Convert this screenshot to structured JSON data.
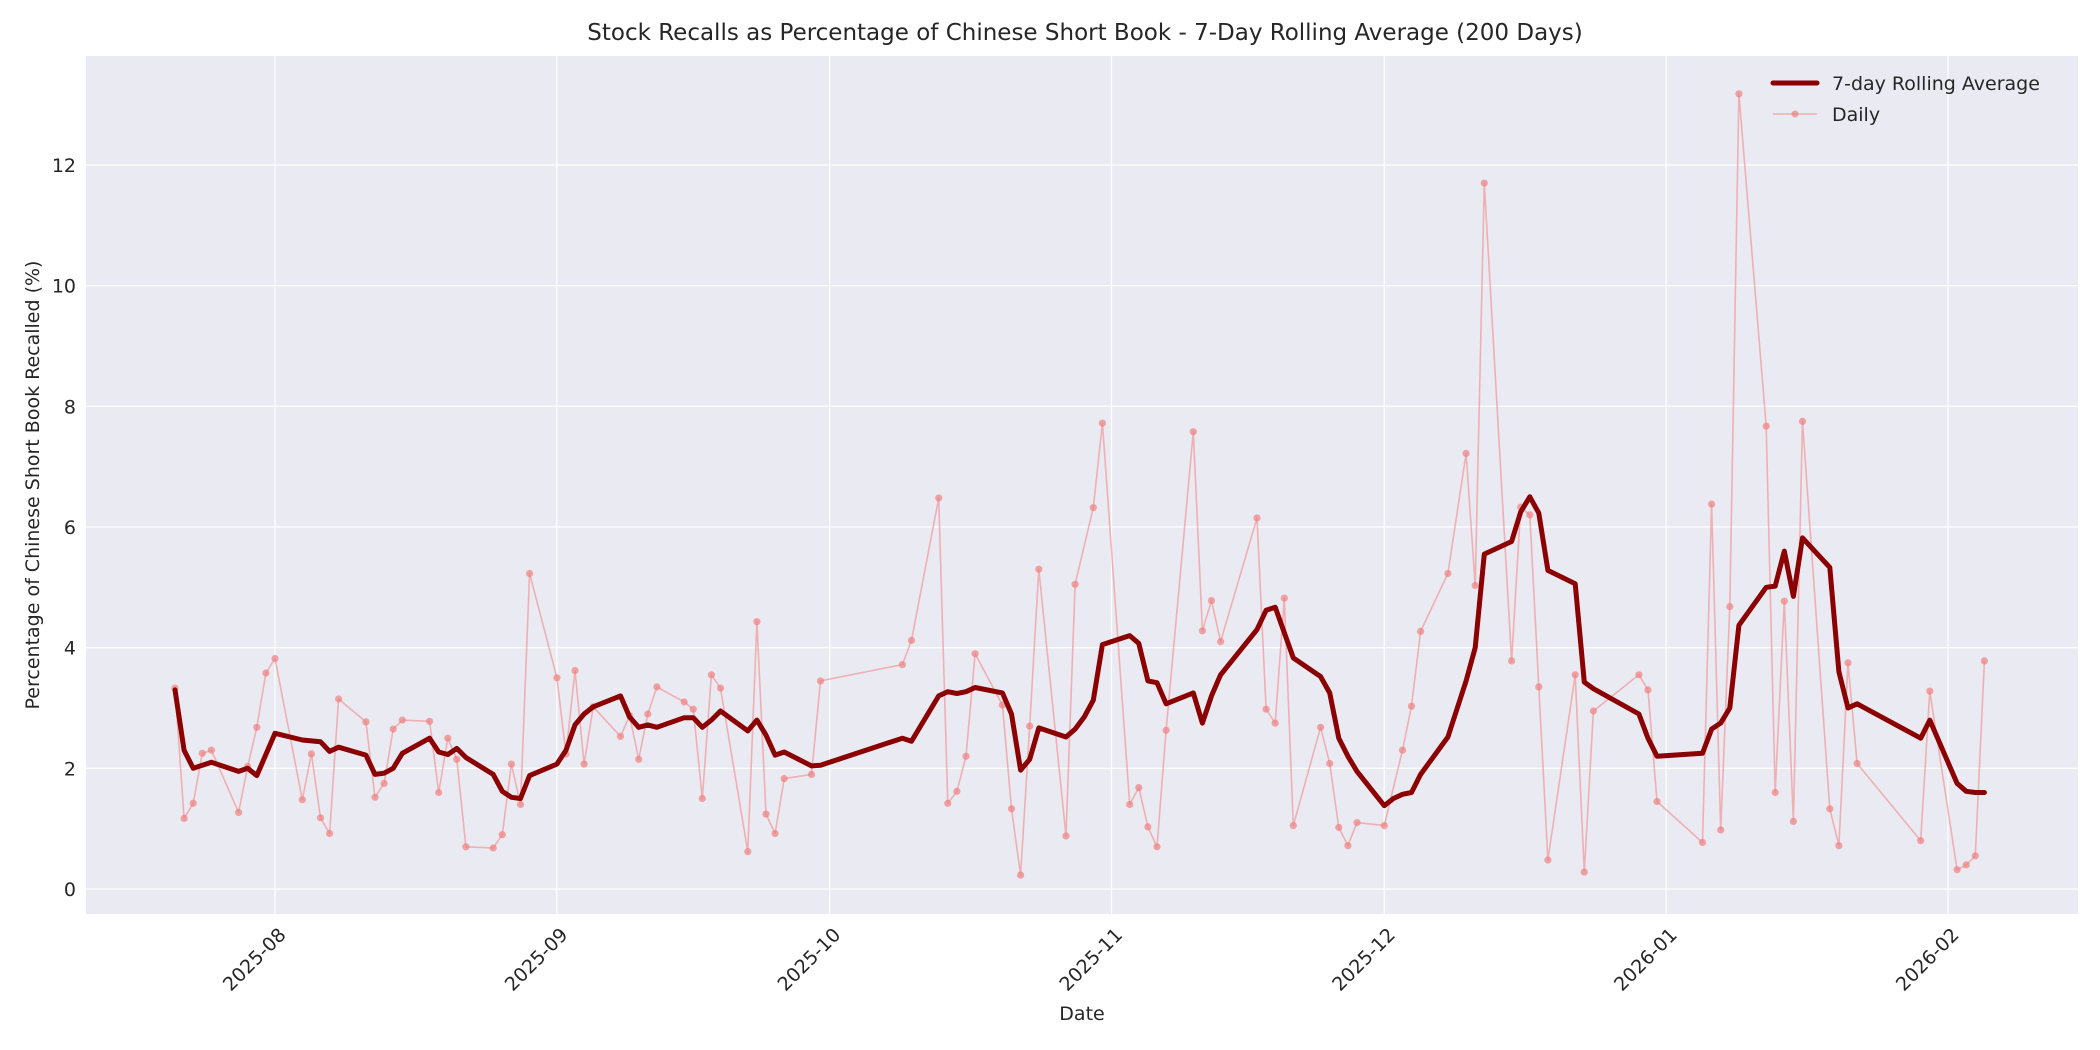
{
  "chart_data": {
    "type": "line",
    "title": "Stock Recalls as Percentage of Chinese Short Book - 7-Day Rolling Average (200 Days)",
    "xlabel": "Date",
    "ylabel": "Percentage of Chinese Short Book Recalled (%)",
    "ylim": [
      -0.45,
      13.8
    ],
    "yticks": [
      0,
      2,
      4,
      6,
      8,
      10,
      12
    ],
    "xlim": [
      "2025-07-14",
      "2026-02-12"
    ],
    "xticks": [
      "2025-08",
      "2025-09",
      "2025-10",
      "2025-11",
      "2025-12",
      "2026-01",
      "2026-02"
    ],
    "grid": true,
    "legend_position": "upper right",
    "colors": {
      "rolling": "#8b0000",
      "daily": "#f08080",
      "plot_bg": "#eaeaf2",
      "grid": "#ffffff"
    },
    "series": [
      {
        "name": "7-day Rolling Average",
        "style": "thick line",
        "points": [
          [
            "2025-07-21",
            3.3
          ],
          [
            "2025-07-22",
            2.3
          ],
          [
            "2025-07-23",
            2.0
          ],
          [
            "2025-07-25",
            2.1
          ],
          [
            "2025-07-28",
            1.95
          ],
          [
            "2025-07-29",
            2.0
          ],
          [
            "2025-07-30",
            1.88
          ],
          [
            "2025-08-01",
            2.58
          ],
          [
            "2025-08-04",
            2.47
          ],
          [
            "2025-08-06",
            2.44
          ],
          [
            "2025-08-07",
            2.28
          ],
          [
            "2025-08-08",
            2.35
          ],
          [
            "2025-08-11",
            2.22
          ],
          [
            "2025-08-12",
            1.9
          ],
          [
            "2025-08-13",
            1.92
          ],
          [
            "2025-08-14",
            2.0
          ],
          [
            "2025-08-15",
            2.25
          ],
          [
            "2025-08-18",
            2.5
          ],
          [
            "2025-08-19",
            2.27
          ],
          [
            "2025-08-20",
            2.23
          ],
          [
            "2025-08-21",
            2.33
          ],
          [
            "2025-08-22",
            2.18
          ],
          [
            "2025-08-25",
            1.9
          ],
          [
            "2025-08-26",
            1.62
          ],
          [
            "2025-08-27",
            1.52
          ],
          [
            "2025-08-28",
            1.5
          ],
          [
            "2025-08-29",
            1.88
          ],
          [
            "2025-09-01",
            2.07
          ],
          [
            "2025-09-02",
            2.3
          ],
          [
            "2025-09-03",
            2.72
          ],
          [
            "2025-09-04",
            2.9
          ],
          [
            "2025-09-05",
            3.02
          ],
          [
            "2025-09-08",
            3.2
          ],
          [
            "2025-09-09",
            2.85
          ],
          [
            "2025-09-10",
            2.68
          ],
          [
            "2025-09-11",
            2.72
          ],
          [
            "2025-09-12",
            2.68
          ],
          [
            "2025-09-15",
            2.84
          ],
          [
            "2025-09-16",
            2.84
          ],
          [
            "2025-09-17",
            2.68
          ],
          [
            "2025-09-18",
            2.8
          ],
          [
            "2025-09-19",
            2.95
          ],
          [
            "2025-09-22",
            2.62
          ],
          [
            "2025-09-23",
            2.8
          ],
          [
            "2025-09-24",
            2.55
          ],
          [
            "2025-09-25",
            2.22
          ],
          [
            "2025-09-26",
            2.27
          ],
          [
            "2025-09-29",
            2.04
          ],
          [
            "2025-09-30",
            2.05
          ],
          [
            "2025-10-09",
            2.5
          ],
          [
            "2025-10-10",
            2.45
          ],
          [
            "2025-10-13",
            3.2
          ],
          [
            "2025-10-14",
            3.27
          ],
          [
            "2025-10-15",
            3.24
          ],
          [
            "2025-10-16",
            3.27
          ],
          [
            "2025-10-17",
            3.34
          ],
          [
            "2025-10-20",
            3.25
          ],
          [
            "2025-10-21",
            2.9
          ],
          [
            "2025-10-22",
            1.97
          ],
          [
            "2025-10-23",
            2.15
          ],
          [
            "2025-10-24",
            2.67
          ],
          [
            "2025-10-27",
            2.52
          ],
          [
            "2025-10-28",
            2.65
          ],
          [
            "2025-10-29",
            2.85
          ],
          [
            "2025-10-30",
            3.13
          ],
          [
            "2025-10-31",
            4.05
          ],
          [
            "2025-11-03",
            4.2
          ],
          [
            "2025-11-04",
            4.07
          ],
          [
            "2025-11-05",
            3.45
          ],
          [
            "2025-11-06",
            3.42
          ],
          [
            "2025-11-07",
            3.07
          ],
          [
            "2025-11-10",
            3.25
          ],
          [
            "2025-11-11",
            2.75
          ],
          [
            "2025-11-12",
            3.2
          ],
          [
            "2025-11-13",
            3.55
          ],
          [
            "2025-11-17",
            4.3
          ],
          [
            "2025-11-18",
            4.62
          ],
          [
            "2025-11-19",
            4.67
          ],
          [
            "2025-11-21",
            3.83
          ],
          [
            "2025-11-24",
            3.52
          ],
          [
            "2025-11-25",
            3.25
          ],
          [
            "2025-11-26",
            2.5
          ],
          [
            "2025-11-27",
            2.2
          ],
          [
            "2025-11-28",
            1.95
          ],
          [
            "2025-12-01",
            1.38
          ],
          [
            "2025-12-02",
            1.5
          ],
          [
            "2025-12-03",
            1.57
          ],
          [
            "2025-12-04",
            1.6
          ],
          [
            "2025-12-05",
            1.9
          ],
          [
            "2025-12-08",
            2.52
          ],
          [
            "2025-12-10",
            3.45
          ],
          [
            "2025-12-11",
            4.0
          ],
          [
            "2025-12-12",
            5.55
          ],
          [
            "2025-12-15",
            5.76
          ],
          [
            "2025-12-16",
            6.25
          ],
          [
            "2025-12-17",
            6.5
          ],
          [
            "2025-12-18",
            6.23
          ],
          [
            "2025-12-19",
            5.28
          ],
          [
            "2025-12-22",
            5.06
          ],
          [
            "2025-12-23",
            3.43
          ],
          [
            "2025-12-24",
            3.32
          ],
          [
            "2025-12-29",
            2.9
          ],
          [
            "2025-12-30",
            2.5
          ],
          [
            "2025-12-31",
            2.2
          ],
          [
            "2026-01-05",
            2.25
          ],
          [
            "2026-01-06",
            2.65
          ],
          [
            "2026-01-07",
            2.75
          ],
          [
            "2026-01-08",
            3.0
          ],
          [
            "2026-01-09",
            4.37
          ],
          [
            "2026-01-12",
            5.0
          ],
          [
            "2026-01-13",
            5.02
          ],
          [
            "2026-01-14",
            5.6
          ],
          [
            "2026-01-15",
            4.85
          ],
          [
            "2026-01-16",
            5.82
          ],
          [
            "2026-01-19",
            5.33
          ],
          [
            "2026-01-20",
            3.6
          ],
          [
            "2026-01-21",
            3.0
          ],
          [
            "2026-01-22",
            3.07
          ],
          [
            "2026-01-29",
            2.5
          ],
          [
            "2026-01-30",
            2.8
          ],
          [
            "2026-02-02",
            1.75
          ],
          [
            "2026-02-03",
            1.62
          ],
          [
            "2026-02-04",
            1.6
          ],
          [
            "2026-02-05",
            1.6
          ]
        ]
      },
      {
        "name": "Daily",
        "style": "thin line with circle markers",
        "points": [
          [
            "2025-07-21",
            3.33
          ],
          [
            "2025-07-22",
            1.17
          ],
          [
            "2025-07-23",
            1.42
          ],
          [
            "2025-07-24",
            2.25
          ],
          [
            "2025-07-25",
            2.3
          ],
          [
            "2025-07-28",
            1.27
          ],
          [
            "2025-07-29",
            2.03
          ],
          [
            "2025-07-30",
            2.68
          ],
          [
            "2025-07-31",
            3.58
          ],
          [
            "2025-08-01",
            3.82
          ],
          [
            "2025-08-04",
            1.48
          ],
          [
            "2025-08-05",
            2.24
          ],
          [
            "2025-08-06",
            1.18
          ],
          [
            "2025-08-07",
            0.92
          ],
          [
            "2025-08-08",
            3.15
          ],
          [
            "2025-08-11",
            2.77
          ],
          [
            "2025-08-12",
            1.52
          ],
          [
            "2025-08-13",
            1.75
          ],
          [
            "2025-08-14",
            2.65
          ],
          [
            "2025-08-15",
            2.8
          ],
          [
            "2025-08-18",
            2.78
          ],
          [
            "2025-08-19",
            1.6
          ],
          [
            "2025-08-20",
            2.5
          ],
          [
            "2025-08-21",
            2.15
          ],
          [
            "2025-08-22",
            0.7
          ],
          [
            "2025-08-25",
            0.68
          ],
          [
            "2025-08-26",
            0.9
          ],
          [
            "2025-08-27",
            2.07
          ],
          [
            "2025-08-28",
            1.4
          ],
          [
            "2025-08-29",
            5.23
          ],
          [
            "2025-09-01",
            3.5
          ],
          [
            "2025-09-02",
            2.24
          ],
          [
            "2025-09-03",
            3.62
          ],
          [
            "2025-09-04",
            2.07
          ],
          [
            "2025-09-05",
            3.02
          ],
          [
            "2025-09-08",
            2.53
          ],
          [
            "2025-09-09",
            2.87
          ],
          [
            "2025-09-10",
            2.15
          ],
          [
            "2025-09-11",
            2.9
          ],
          [
            "2025-09-12",
            3.35
          ],
          [
            "2025-09-15",
            3.1
          ],
          [
            "2025-09-16",
            2.98
          ],
          [
            "2025-09-17",
            1.5
          ],
          [
            "2025-09-18",
            3.55
          ],
          [
            "2025-09-19",
            3.33
          ],
          [
            "2025-09-22",
            0.62
          ],
          [
            "2025-09-23",
            4.43
          ],
          [
            "2025-09-24",
            1.24
          ],
          [
            "2025-09-25",
            0.92
          ],
          [
            "2025-09-26",
            1.83
          ],
          [
            "2025-09-29",
            1.9
          ],
          [
            "2025-09-30",
            3.45
          ],
          [
            "2025-10-09",
            3.72
          ],
          [
            "2025-10-10",
            4.12
          ],
          [
            "2025-10-13",
            6.48
          ],
          [
            "2025-10-14",
            1.42
          ],
          [
            "2025-10-15",
            1.62
          ],
          [
            "2025-10-16",
            2.2
          ],
          [
            "2025-10-17",
            3.9
          ],
          [
            "2025-10-20",
            3.05
          ],
          [
            "2025-10-21",
            1.33
          ],
          [
            "2025-10-22",
            0.23
          ],
          [
            "2025-10-23",
            2.7
          ],
          [
            "2025-10-24",
            5.3
          ],
          [
            "2025-10-27",
            0.88
          ],
          [
            "2025-10-28",
            5.05
          ],
          [
            "2025-10-30",
            6.32
          ],
          [
            "2025-10-31",
            7.72
          ],
          [
            "2025-11-03",
            1.4
          ],
          [
            "2025-11-04",
            1.68
          ],
          [
            "2025-11-05",
            1.03
          ],
          [
            "2025-11-06",
            0.7
          ],
          [
            "2025-11-07",
            2.63
          ],
          [
            "2025-11-10",
            7.58
          ],
          [
            "2025-11-11",
            4.28
          ],
          [
            "2025-11-12",
            4.78
          ],
          [
            "2025-11-13",
            4.1
          ],
          [
            "2025-11-17",
            6.15
          ],
          [
            "2025-11-18",
            2.98
          ],
          [
            "2025-11-19",
            2.75
          ],
          [
            "2025-11-20",
            4.82
          ],
          [
            "2025-11-21",
            1.05
          ],
          [
            "2025-11-24",
            2.68
          ],
          [
            "2025-11-25",
            2.08
          ],
          [
            "2025-11-26",
            1.02
          ],
          [
            "2025-11-27",
            0.72
          ],
          [
            "2025-11-28",
            1.1
          ],
          [
            "2025-12-01",
            1.05
          ],
          [
            "2025-12-03",
            2.3
          ],
          [
            "2025-12-04",
            3.03
          ],
          [
            "2025-12-05",
            4.27
          ],
          [
            "2025-12-08",
            5.23
          ],
          [
            "2025-12-10",
            7.22
          ],
          [
            "2025-12-11",
            5.03
          ],
          [
            "2025-12-12",
            11.7
          ],
          [
            "2025-12-15",
            3.78
          ],
          [
            "2025-12-16",
            6.33
          ],
          [
            "2025-12-17",
            6.2
          ],
          [
            "2025-12-18",
            3.35
          ],
          [
            "2025-12-19",
            0.48
          ],
          [
            "2025-12-22",
            3.55
          ],
          [
            "2025-12-23",
            0.28
          ],
          [
            "2025-12-24",
            2.95
          ],
          [
            "2025-12-29",
            3.55
          ],
          [
            "2025-12-30",
            3.3
          ],
          [
            "2025-12-31",
            1.45
          ],
          [
            "2026-01-05",
            0.77
          ],
          [
            "2026-01-06",
            6.38
          ],
          [
            "2026-01-07",
            0.98
          ],
          [
            "2026-01-08",
            4.68
          ],
          [
            "2026-01-09",
            13.18
          ],
          [
            "2026-01-12",
            7.67
          ],
          [
            "2026-01-13",
            1.6
          ],
          [
            "2026-01-14",
            4.77
          ],
          [
            "2026-01-15",
            1.12
          ],
          [
            "2026-01-16",
            7.75
          ],
          [
            "2026-01-19",
            1.33
          ],
          [
            "2026-01-20",
            0.72
          ],
          [
            "2026-01-21",
            3.75
          ],
          [
            "2026-01-22",
            2.08
          ],
          [
            "2026-01-29",
            0.8
          ],
          [
            "2026-01-30",
            3.28
          ],
          [
            "2026-02-02",
            0.32
          ],
          [
            "2026-02-03",
            0.4
          ],
          [
            "2026-02-04",
            0.55
          ],
          [
            "2026-02-05",
            3.78
          ]
        ]
      }
    ]
  },
  "legend": {
    "items": [
      {
        "label": "7-day Rolling Average"
      },
      {
        "label": "Daily"
      }
    ]
  }
}
